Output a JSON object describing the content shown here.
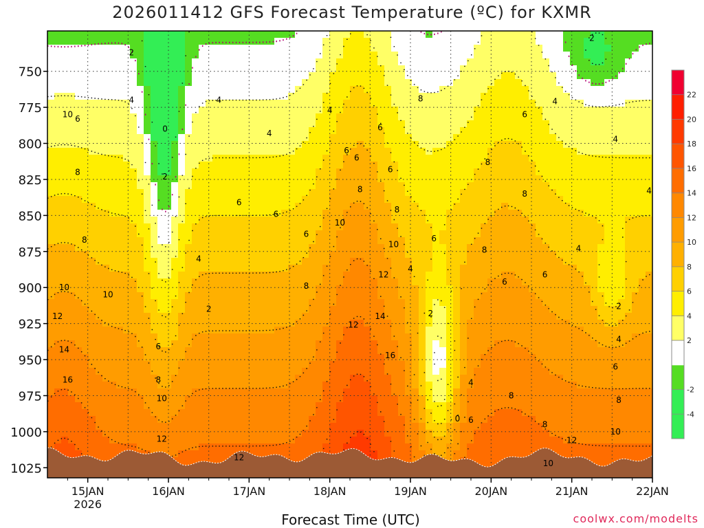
{
  "title": "2026011412 GFS Forecast Temperature (ºC) for KXMR",
  "xlabel": "Forecast Time (UTC)",
  "credit": "coolwx.com/modelts",
  "colors": {
    "below_0": [
      "#33ee55",
      "#55dd22"
    ],
    "bands": [
      "#ffffff",
      "#ffff66",
      "#ffee00",
      "#ffd000",
      "#ffb000",
      "#ff9c00",
      "#ff8800",
      "#ff6d00",
      "#ff5500",
      "#ff3a00",
      "#ff1e00",
      "#f00030",
      "#ff0066"
    ],
    "ground": "#9c5a35",
    "contour": "#111111",
    "zero_contour": "#b0006e"
  },
  "chart_data": {
    "type": "heatmap",
    "title": "2026011412 GFS Forecast Temperature (ºC) for KXMR",
    "xlabel": "Forecast Time (UTC)",
    "ylabel": "",
    "x_ticks": [
      "15JAN",
      "16JAN",
      "17JAN",
      "18JAN",
      "19JAN",
      "20JAN",
      "21JAN",
      "22JAN"
    ],
    "x_tick_sublabel": {
      "tick": "15JAN",
      "text": "2026"
    },
    "xlim_days": [
      14.5,
      22.0
    ],
    "y_ticks": [
      750,
      775,
      800,
      825,
      850,
      875,
      900,
      925,
      950,
      975,
      1000,
      1025
    ],
    "ylim_hpa": [
      722,
      1032
    ],
    "y_inverted": true,
    "grid": true,
    "colorbar": {
      "label_values": [
        22,
        20,
        18,
        16,
        14,
        12,
        10,
        8,
        6,
        4,
        2,
        -2,
        -4
      ],
      "band_edges": [
        -6,
        -4,
        -2,
        0,
        2,
        4,
        6,
        8,
        10,
        12,
        14,
        16,
        18,
        20,
        22,
        24
      ],
      "position": "right"
    },
    "contour_interval": 2,
    "contour_labels": [
      {
        "time": "14JAN18",
        "p": 780,
        "v": 10
      },
      {
        "time": "14JAN21",
        "p": 783,
        "v": 6
      },
      {
        "time": "14JAN21",
        "p": 820,
        "v": 8
      },
      {
        "time": "14JAN23",
        "p": 867,
        "v": 8
      },
      {
        "time": "14JAN17",
        "p": 900,
        "v": 10
      },
      {
        "time": "15JAN06",
        "p": 905,
        "v": 10
      },
      {
        "time": "14JAN15",
        "p": 920,
        "v": 12
      },
      {
        "time": "14JAN17",
        "p": 943,
        "v": 14
      },
      {
        "time": "14JAN18",
        "p": 964,
        "v": 16
      },
      {
        "time": "15JAN13",
        "p": 737,
        "v": 2
      },
      {
        "time": "15JAN13",
        "p": 770,
        "v": 4
      },
      {
        "time": "15JAN23",
        "p": 790,
        "v": 0
      },
      {
        "time": "15JAN23",
        "p": 823,
        "v": 2
      },
      {
        "time": "16JAN09",
        "p": 880,
        "v": 4
      },
      {
        "time": "16JAN12",
        "p": 915,
        "v": 2
      },
      {
        "time": "16JAN15",
        "p": 770,
        "v": 4
      },
      {
        "time": "16JAN21",
        "p": 841,
        "v": 6
      },
      {
        "time": "15JAN21",
        "p": 941,
        "v": 6
      },
      {
        "time": "15JAN21",
        "p": 964,
        "v": 8
      },
      {
        "time": "15JAN22",
        "p": 977,
        "v": 10
      },
      {
        "time": "15JAN22",
        "p": 1005,
        "v": 12
      },
      {
        "time": "16JAN21",
        "p": 1018,
        "v": 12
      },
      {
        "time": "17JAN08",
        "p": 849,
        "v": 6
      },
      {
        "time": "17JAN06",
        "p": 793,
        "v": 4
      },
      {
        "time": "17JAN17",
        "p": 863,
        "v": 6
      },
      {
        "time": "17JAN17",
        "p": 899,
        "v": 8
      },
      {
        "time": "18JAN00",
        "p": 777,
        "v": 4
      },
      {
        "time": "18JAN05",
        "p": 805,
        "v": 6
      },
      {
        "time": "18JAN08",
        "p": 810,
        "v": 6
      },
      {
        "time": "18JAN09",
        "p": 832,
        "v": 8
      },
      {
        "time": "18JAN03",
        "p": 855,
        "v": 10
      },
      {
        "time": "18JAN07",
        "p": 926,
        "v": 12
      },
      {
        "time": "18JAN15",
        "p": 789,
        "v": 6
      },
      {
        "time": "18JAN18",
        "p": 818,
        "v": 6
      },
      {
        "time": "18JAN20",
        "p": 846,
        "v": 8
      },
      {
        "time": "18JAN19",
        "p": 870,
        "v": 10
      },
      {
        "time": "18JAN16",
        "p": 891,
        "v": 12
      },
      {
        "time": "18JAN15",
        "p": 920,
        "v": 14
      },
      {
        "time": "18JAN18",
        "p": 947,
        "v": 16
      },
      {
        "time": "19JAN00",
        "p": 887,
        "v": 4
      },
      {
        "time": "19JAN07",
        "p": 866,
        "v": 6
      },
      {
        "time": "19JAN03",
        "p": 769,
        "v": 8
      },
      {
        "time": "19JAN06",
        "p": 918,
        "v": 2
      },
      {
        "time": "19JAN14",
        "p": 991,
        "v": 0
      },
      {
        "time": "19JAN18",
        "p": 966,
        "v": 4
      },
      {
        "time": "19JAN18",
        "p": 992,
        "v": 6
      },
      {
        "time": "19JAN22",
        "p": 874,
        "v": 8
      },
      {
        "time": "19JAN23",
        "p": 813,
        "v": 8
      },
      {
        "time": "20JAN04",
        "p": 896,
        "v": 6
      },
      {
        "time": "20JAN06",
        "p": 975,
        "v": 8
      },
      {
        "time": "20JAN10",
        "p": 780,
        "v": 6
      },
      {
        "time": "20JAN10",
        "p": 835,
        "v": 8
      },
      {
        "time": "20JAN16",
        "p": 891,
        "v": 6
      },
      {
        "time": "20JAN16",
        "p": 995,
        "v": 8
      },
      {
        "time": "20JAN19",
        "p": 771,
        "v": 4
      },
      {
        "time": "20JAN17",
        "p": 1022,
        "v": 10
      },
      {
        "time": "21JAN02",
        "p": 873,
        "v": 4
      },
      {
        "time": "21JAN00",
        "p": 1006,
        "v": 12
      },
      {
        "time": "21JAN06",
        "p": 727,
        "v": 2
      },
      {
        "time": "21JAN13",
        "p": 797,
        "v": 4
      },
      {
        "time": "21JAN14",
        "p": 913,
        "v": 2
      },
      {
        "time": "21JAN14",
        "p": 936,
        "v": 4
      },
      {
        "time": "21JAN13",
        "p": 955,
        "v": 6
      },
      {
        "time": "21JAN14",
        "p": 978,
        "v": 8
      },
      {
        "time": "21JAN13",
        "p": 1000,
        "v": 10
      },
      {
        "time": "21JAN23",
        "p": 833,
        "v": 4
      }
    ]
  }
}
